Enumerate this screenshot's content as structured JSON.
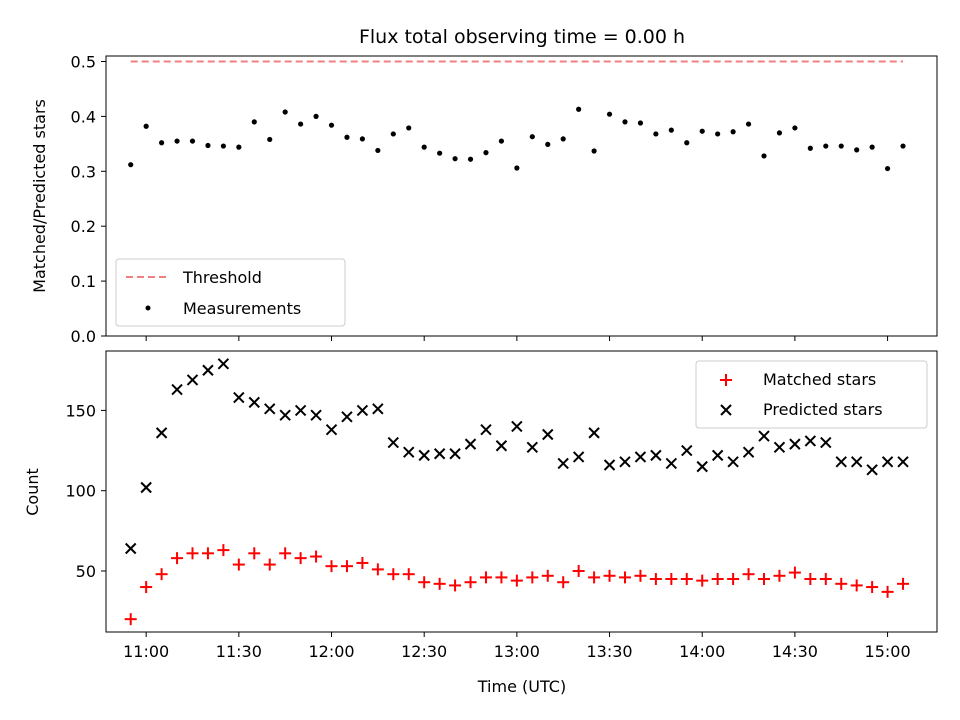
{
  "chart_data": [
    {
      "type": "scatter",
      "title": "Flux total observing time = 0.00 h",
      "xlabel": "",
      "ylabel": "Matched/Predicted stars",
      "xlim": [
        "10:47",
        "15:16"
      ],
      "ylim": [
        0,
        0.51
      ],
      "yticks": [
        "0.0",
        "0.1",
        "0.2",
        "0.3",
        "0.4",
        "0.5"
      ],
      "grid": false,
      "legend": {
        "placement": "lower-left",
        "entries": [
          "Threshold",
          "Measurements"
        ]
      },
      "threshold": {
        "name": "Threshold",
        "x": [
          "10:55",
          "15:05"
        ],
        "y": 0.5,
        "color": "#f08080",
        "style": "dashed"
      },
      "series": [
        {
          "name": "Measurements",
          "color": "#000000",
          "marker": "dot",
          "x": [
            "10:55",
            "11:00",
            "11:05",
            "11:10",
            "11:15",
            "11:20",
            "11:25",
            "11:30",
            "11:35",
            "11:40",
            "11:45",
            "11:50",
            "11:55",
            "12:00",
            "12:05",
            "12:10",
            "12:15",
            "12:20",
            "12:25",
            "12:30",
            "12:35",
            "12:40",
            "12:45",
            "12:50",
            "12:55",
            "13:00",
            "13:05",
            "13:10",
            "13:15",
            "13:20",
            "13:25",
            "13:30",
            "13:35",
            "13:40",
            "13:45",
            "13:50",
            "13:55",
            "14:00",
            "14:05",
            "14:10",
            "14:15",
            "14:20",
            "14:25",
            "14:30",
            "14:35",
            "14:40",
            "14:45",
            "14:50",
            "14:55",
            "15:00",
            "15:05"
          ],
          "y": [
            0.312,
            0.382,
            0.352,
            0.355,
            0.355,
            0.347,
            0.346,
            0.344,
            0.39,
            0.358,
            0.408,
            0.386,
            0.4,
            0.384,
            0.362,
            0.359,
            0.338,
            0.368,
            0.379,
            0.344,
            0.333,
            0.323,
            0.322,
            0.334,
            0.355,
            0.306,
            0.363,
            0.349,
            0.359,
            0.413,
            0.337,
            0.404,
            0.39,
            0.388,
            0.368,
            0.375,
            0.352,
            0.373,
            0.368,
            0.372,
            0.386,
            0.328,
            0.37,
            0.379,
            0.342,
            0.346,
            0.346,
            0.339,
            0.344,
            0.305,
            0.346
          ]
        }
      ]
    },
    {
      "type": "scatter",
      "title": "",
      "xlabel": "Time (UTC)",
      "ylabel": "Count",
      "xlim": [
        "10:47",
        "15:16"
      ],
      "ylim": [
        12,
        187
      ],
      "yticks": [
        "50",
        "100",
        "150"
      ],
      "xticks": [
        "11:00",
        "11:30",
        "12:00",
        "12:30",
        "13:00",
        "13:30",
        "14:00",
        "14:30",
        "15:00"
      ],
      "grid": false,
      "legend": {
        "placement": "top-right",
        "entries": [
          "Matched stars",
          "Predicted stars"
        ]
      },
      "series": [
        {
          "name": "Matched stars",
          "color": "#ff0000",
          "marker": "plus",
          "x": [
            "10:55",
            "11:00",
            "11:05",
            "11:10",
            "11:15",
            "11:20",
            "11:25",
            "11:30",
            "11:35",
            "11:40",
            "11:45",
            "11:50",
            "11:55",
            "12:00",
            "12:05",
            "12:10",
            "12:15",
            "12:20",
            "12:25",
            "12:30",
            "12:35",
            "12:40",
            "12:45",
            "12:50",
            "12:55",
            "13:00",
            "13:05",
            "13:10",
            "13:15",
            "13:20",
            "13:25",
            "13:30",
            "13:35",
            "13:40",
            "13:45",
            "13:50",
            "13:55",
            "14:00",
            "14:05",
            "14:10",
            "14:15",
            "14:20",
            "14:25",
            "14:30",
            "14:35",
            "14:40",
            "14:45",
            "14:50",
            "14:55",
            "15:00",
            "15:05"
          ],
          "y": [
            20,
            40,
            48,
            58,
            61,
            61,
            63,
            54,
            61,
            54,
            61,
            58,
            59,
            53,
            53,
            55,
            51,
            48,
            48,
            43,
            42,
            41,
            43,
            46,
            46,
            44,
            46,
            47,
            43,
            50,
            46,
            47,
            46,
            47,
            45,
            45,
            45,
            44,
            45,
            45,
            48,
            45,
            47,
            49,
            45,
            45,
            42,
            41,
            40,
            37,
            42
          ]
        },
        {
          "name": "Predicted stars",
          "color": "#000000",
          "marker": "x",
          "x": [
            "10:55",
            "11:00",
            "11:05",
            "11:10",
            "11:15",
            "11:20",
            "11:25",
            "11:30",
            "11:35",
            "11:40",
            "11:45",
            "11:50",
            "11:55",
            "12:00",
            "12:05",
            "12:10",
            "12:15",
            "12:20",
            "12:25",
            "12:30",
            "12:35",
            "12:40",
            "12:45",
            "12:50",
            "12:55",
            "13:00",
            "13:05",
            "13:10",
            "13:15",
            "13:20",
            "13:25",
            "13:30",
            "13:35",
            "13:40",
            "13:45",
            "13:50",
            "13:55",
            "14:00",
            "14:05",
            "14:10",
            "14:15",
            "14:20",
            "14:25",
            "14:30",
            "14:35",
            "14:40",
            "14:45",
            "14:50",
            "14:55",
            "15:00",
            "15:05"
          ],
          "y": [
            64,
            102,
            136,
            163,
            169,
            175,
            179,
            158,
            155,
            151,
            147,
            150,
            147,
            138,
            146,
            150,
            151,
            130,
            124,
            122,
            123,
            123,
            129,
            138,
            128,
            140,
            127,
            135,
            117,
            121,
            136,
            116,
            118,
            121,
            122,
            117,
            125,
            115,
            122,
            118,
            124,
            134,
            127,
            129,
            131,
            130,
            118,
            118,
            113,
            118,
            118
          ]
        }
      ]
    }
  ]
}
